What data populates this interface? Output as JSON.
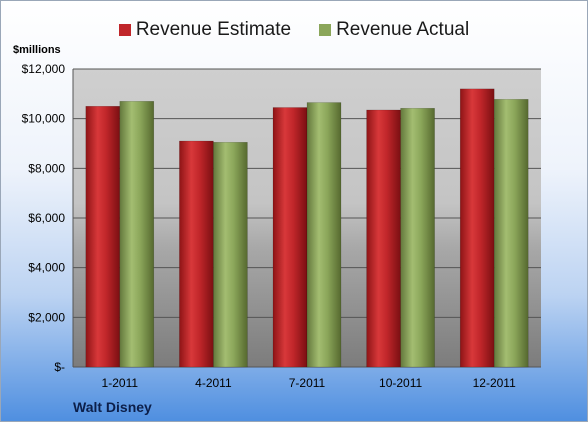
{
  "chart_data": {
    "type": "bar",
    "ylabel": "$millions",
    "categories": [
      "1-2011",
      "4-2011",
      "7-2011",
      "10-2011",
      "12-2011"
    ],
    "series": [
      {
        "name": "Revenue Estimate",
        "color": "#c0262a",
        "values": [
          10500,
          9100,
          10450,
          10350,
          11200
        ]
      },
      {
        "name": "Revenue Actual",
        "color": "#8ba65a",
        "values": [
          10700,
          9050,
          10650,
          10420,
          10780
        ]
      }
    ],
    "ylim": [
      0,
      12000
    ],
    "yticks": [
      0,
      2000,
      4000,
      6000,
      8000,
      10000,
      12000
    ],
    "ytick_labels": [
      "$-",
      "$2,000",
      "$4,000",
      "$6,000",
      "$8,000",
      "$10,000",
      "$12,000"
    ],
    "grid": true,
    "legend_position": "top"
  },
  "footer": {
    "company": "Walt Disney"
  }
}
